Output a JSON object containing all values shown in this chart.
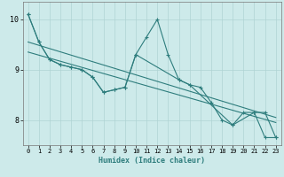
{
  "xlabel": "Humidex (Indice chaleur)",
  "xlim": [
    -0.5,
    23.5
  ],
  "ylim": [
    7.5,
    10.35
  ],
  "yticks": [
    8,
    9,
    10
  ],
  "xticks": [
    0,
    1,
    2,
    3,
    4,
    5,
    6,
    7,
    8,
    9,
    10,
    11,
    12,
    13,
    14,
    15,
    16,
    17,
    18,
    19,
    20,
    21,
    22,
    23
  ],
  "bg_color": "#cdeaea",
  "grid_color": "#afd4d4",
  "line_color": "#2e7d7d",
  "series1_x": [
    0,
    1,
    2,
    3,
    4,
    5,
    6,
    7,
    8,
    9,
    10,
    11,
    12,
    13,
    14,
    15,
    16,
    17,
    18,
    19,
    20,
    21,
    22,
    23
  ],
  "series1_y": [
    10.1,
    9.55,
    9.2,
    9.1,
    9.05,
    9.0,
    8.85,
    8.55,
    8.6,
    8.65,
    9.3,
    9.65,
    10.0,
    9.3,
    8.8,
    8.7,
    8.65,
    8.35,
    8.0,
    7.9,
    8.15,
    8.15,
    7.65,
    7.65
  ],
  "series2_x": [
    0,
    1,
    2,
    3,
    4,
    5,
    6,
    7,
    8,
    9,
    10,
    14,
    15,
    19,
    21,
    22,
    23
  ],
  "series2_y": [
    10.1,
    9.55,
    9.2,
    9.1,
    9.05,
    9.0,
    8.85,
    8.55,
    8.6,
    8.65,
    9.3,
    8.8,
    8.7,
    7.9,
    8.15,
    8.15,
    7.65
  ],
  "trend1_x": [
    0,
    23
  ],
  "trend1_y": [
    9.55,
    8.05
  ],
  "trend2_x": [
    0,
    23
  ],
  "trend2_y": [
    9.35,
    7.95
  ],
  "xlabel_fontsize": 6,
  "tick_fontsize": 5
}
